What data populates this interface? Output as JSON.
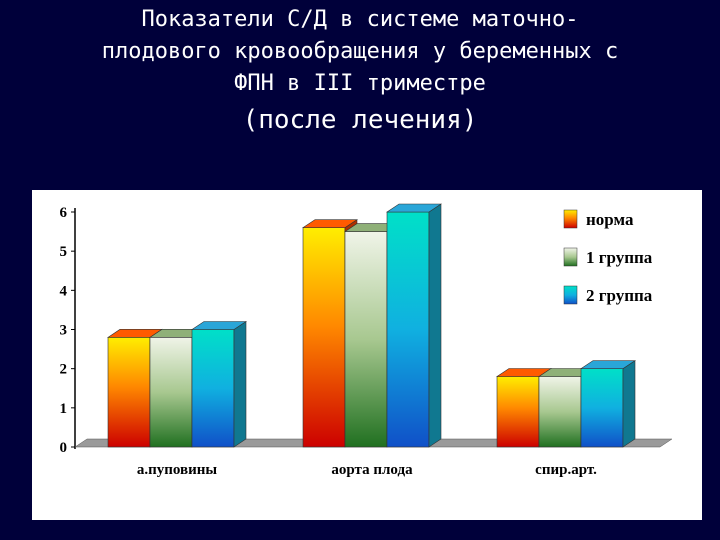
{
  "title": {
    "line1": "Показатели С/Д  в системе маточно-",
    "line2": "плодового кровообращения у беременных  с",
    "line3": "ФПН в III триместре",
    "line4": "(после лечения)"
  },
  "chart_data": {
    "type": "bar",
    "categories": [
      "а.пуповины",
      "аорта плода",
      "спир.арт."
    ],
    "series": [
      {
        "name": "норма",
        "values": [
          2.8,
          5.6,
          1.8
        ],
        "color": "#ff9900"
      },
      {
        "name": "1 группа",
        "values": [
          2.8,
          5.5,
          1.8
        ],
        "color": "#7fae63"
      },
      {
        "name": "2 группа",
        "values": [
          3.0,
          6.0,
          2.0
        ],
        "color": "#1aa0e0"
      }
    ],
    "yticks": [
      0,
      1,
      2,
      3,
      4,
      5,
      6
    ],
    "ylim": [
      0,
      6
    ],
    "legend_position": "top-right",
    "grid": false,
    "style": "3d"
  }
}
